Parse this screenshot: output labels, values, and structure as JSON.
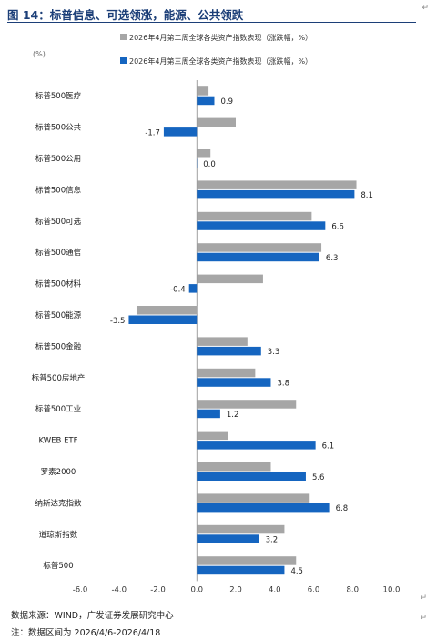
{
  "title": "图 14：标普信息、可选领涨，能源、公共领跌",
  "chart_data": {
    "type": "bar",
    "orientation": "horizontal",
    "unit_label": "(%)",
    "categories": [
      "标普500医疗",
      "标普500公共",
      "标普500公用",
      "标普500信息",
      "标普500可选",
      "标普500通信",
      "标普500材料",
      "标普500能源",
      "标普500金融",
      "标普500房地产",
      "标普500工业",
      "KWEB ETF",
      "罗素2000",
      "纳斯达克指数",
      "道琼斯指数",
      "标普500"
    ],
    "series": [
      {
        "name": "2026年4月第二周全球各类资产指数表现（涨跌幅，%）",
        "color": "#a6a6a6",
        "values": [
          0.6,
          2.0,
          0.7,
          8.2,
          5.9,
          6.4,
          3.4,
          -3.1,
          2.6,
          3.0,
          5.1,
          1.6,
          3.8,
          5.8,
          4.5,
          5.1
        ]
      },
      {
        "name": "2026年4月第三周全球各类资产指数表现（涨跌幅，%）",
        "color": "#1565c0",
        "values": [
          0.9,
          -1.7,
          0.0,
          8.1,
          6.6,
          6.3,
          -0.4,
          -3.5,
          3.3,
          3.8,
          1.2,
          6.1,
          5.6,
          6.8,
          3.2,
          4.5
        ]
      }
    ],
    "data_labels": [
      "0.9",
      "-1.7",
      "0.0",
      "8.1",
      "6.6",
      "6.3",
      "-0.4",
      "-3.5",
      "3.3",
      "3.8",
      "1.2",
      "6.1",
      "5.6",
      "6.8",
      "3.2",
      "4.5"
    ],
    "xlim": [
      -6.0,
      10.0
    ],
    "xticks": [
      -6.0,
      -4.0,
      -2.0,
      0.0,
      2.0,
      4.0,
      6.0,
      8.0,
      10.0
    ],
    "xtick_labels": [
      "-6.0",
      "-4.0",
      "-2.0",
      "0.0",
      "2.0",
      "4.0",
      "6.0",
      "8.0",
      "10.0"
    ],
    "grid": false,
    "legend_position": "top"
  },
  "notes": {
    "source": "数据来源：WIND，广发证券发展研究中心",
    "range": "注：数据区间为 2026/4/6-2026/4/18"
  },
  "marks": [
    "↵",
    "↵",
    "↵",
    "↵"
  ]
}
